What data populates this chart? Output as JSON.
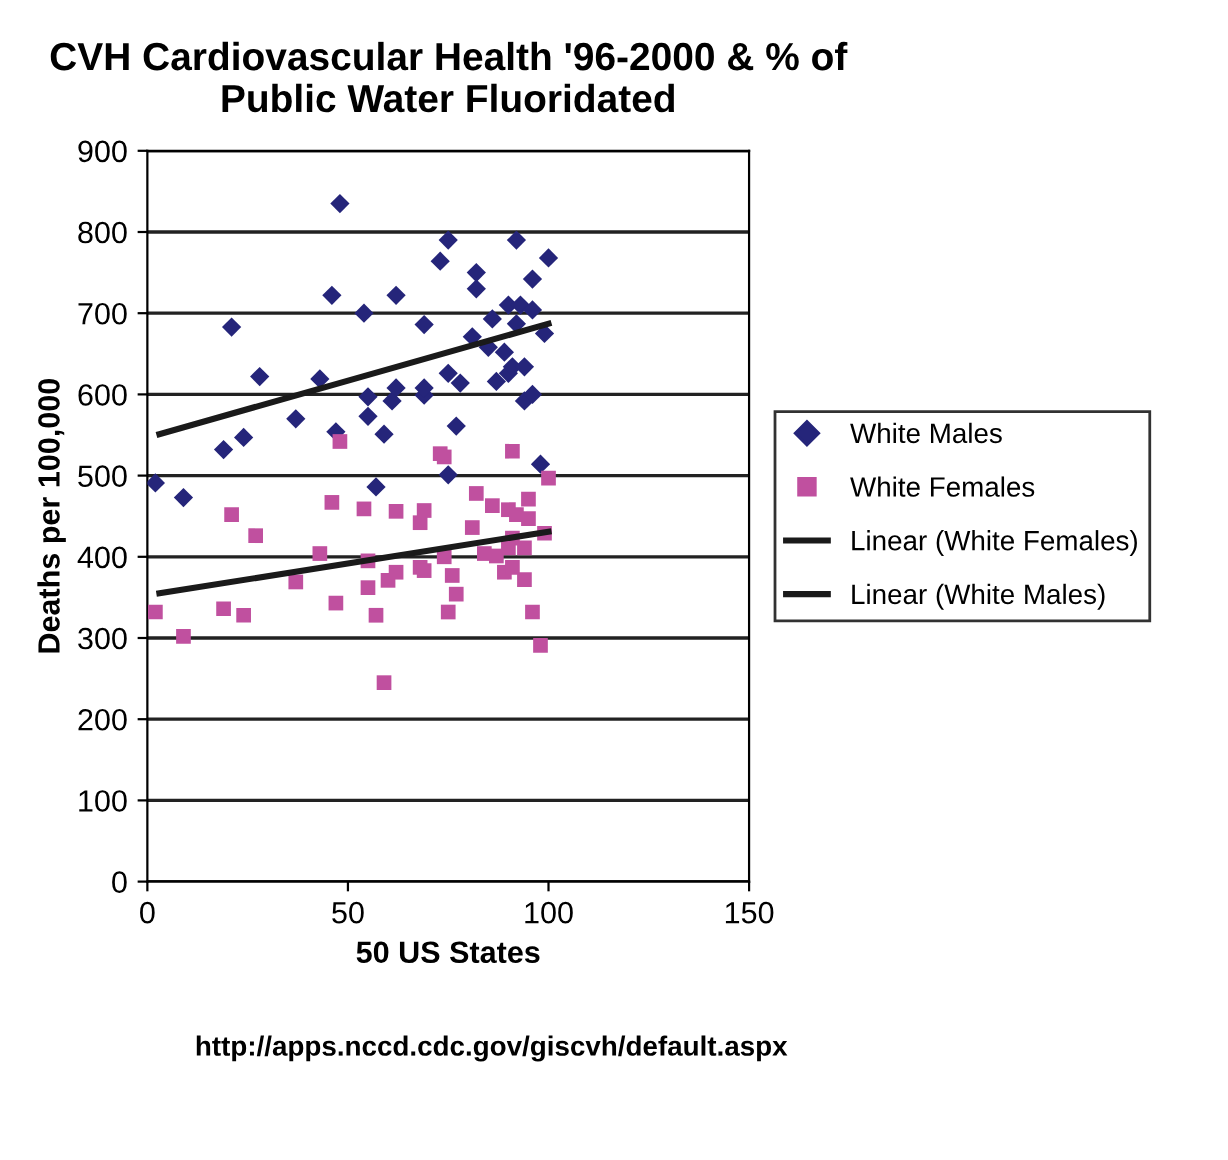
{
  "chart_data": {
    "type": "scatter",
    "title": "CVH Cardiovascular Health '96-2000 & % of\nPublic Water Fluoridated",
    "xlabel": "50 US States",
    "ylabel": "Deaths per 100,000",
    "annotations": [
      "http://apps.nccd.cdc.gov/giscvh/default.aspx"
    ],
    "xlim": [
      0,
      150
    ],
    "xticks": [
      0,
      50,
      100,
      150
    ],
    "ylim": [
      0,
      900
    ],
    "yticks": [
      0,
      100,
      200,
      300,
      400,
      500,
      600,
      700,
      800,
      900
    ],
    "grid": "y",
    "legend": "right",
    "series": [
      {
        "name": "White Males",
        "color": "#25257a",
        "marker": "diamond",
        "x": [
          2,
          9,
          19,
          24,
          21,
          28,
          37,
          43,
          47,
          46,
          48,
          57,
          59,
          55,
          55,
          54,
          61,
          62,
          62,
          69,
          69,
          69,
          75,
          75,
          77,
          78,
          73,
          75,
          81,
          82,
          82,
          85,
          86,
          87,
          90,
          89,
          91,
          92,
          90,
          93,
          92,
          94,
          96,
          94,
          96,
          96,
          98,
          99,
          100
        ],
        "values": [
          491,
          473,
          532,
          547,
          683,
          622,
          570,
          619,
          554,
          722,
          835,
          486,
          551,
          573,
          597,
          700,
          592,
          608,
          722,
          599,
          608,
          686,
          626,
          501,
          561,
          614,
          764,
          790,
          671,
          730,
          750,
          658,
          693,
          616,
          626,
          652,
          634,
          687,
          710,
          710,
          790,
          592,
          600,
          634,
          704,
          742,
          514,
          675,
          768
        ]
      },
      {
        "name": "White Females",
        "color": "#c0509f",
        "marker": "square",
        "x": [
          2,
          9,
          19,
          24,
          21,
          27,
          37,
          43,
          47,
          46,
          48,
          54,
          55,
          55,
          57,
          59,
          60,
          62,
          62,
          68,
          69,
          68,
          69,
          75,
          77,
          76,
          74,
          73,
          74,
          81,
          82,
          84,
          86,
          87,
          89,
          90,
          90,
          91,
          91,
          92,
          91,
          94,
          94,
          95,
          95,
          96,
          98,
          99,
          100
        ],
        "values": [
          332,
          302,
          336,
          328,
          452,
          426,
          369,
          404,
          343,
          467,
          542,
          459,
          362,
          395,
          328,
          245,
          371,
          381,
          456,
          387,
          383,
          442,
          457,
          332,
          354,
          377,
          400,
          527,
          523,
          436,
          478,
          404,
          463,
          401,
          381,
          411,
          458,
          387,
          423,
          452,
          530,
          372,
          411,
          447,
          471,
          332,
          291,
          429,
          497
        ]
      },
      {
        "name": "Linear (White Females)",
        "type": "line",
        "color": "#1a1a1a",
        "marker": "none",
        "line_style": "solid",
        "x": [
          3,
          100
        ],
        "values": [
          355,
          431
        ]
      },
      {
        "name": "Linear (White Males)",
        "type": "line",
        "color": "#1a1a1a",
        "marker": "none",
        "line_style": "solid",
        "x": [
          3,
          100
        ],
        "values": [
          551,
          687
        ]
      }
    ]
  }
}
